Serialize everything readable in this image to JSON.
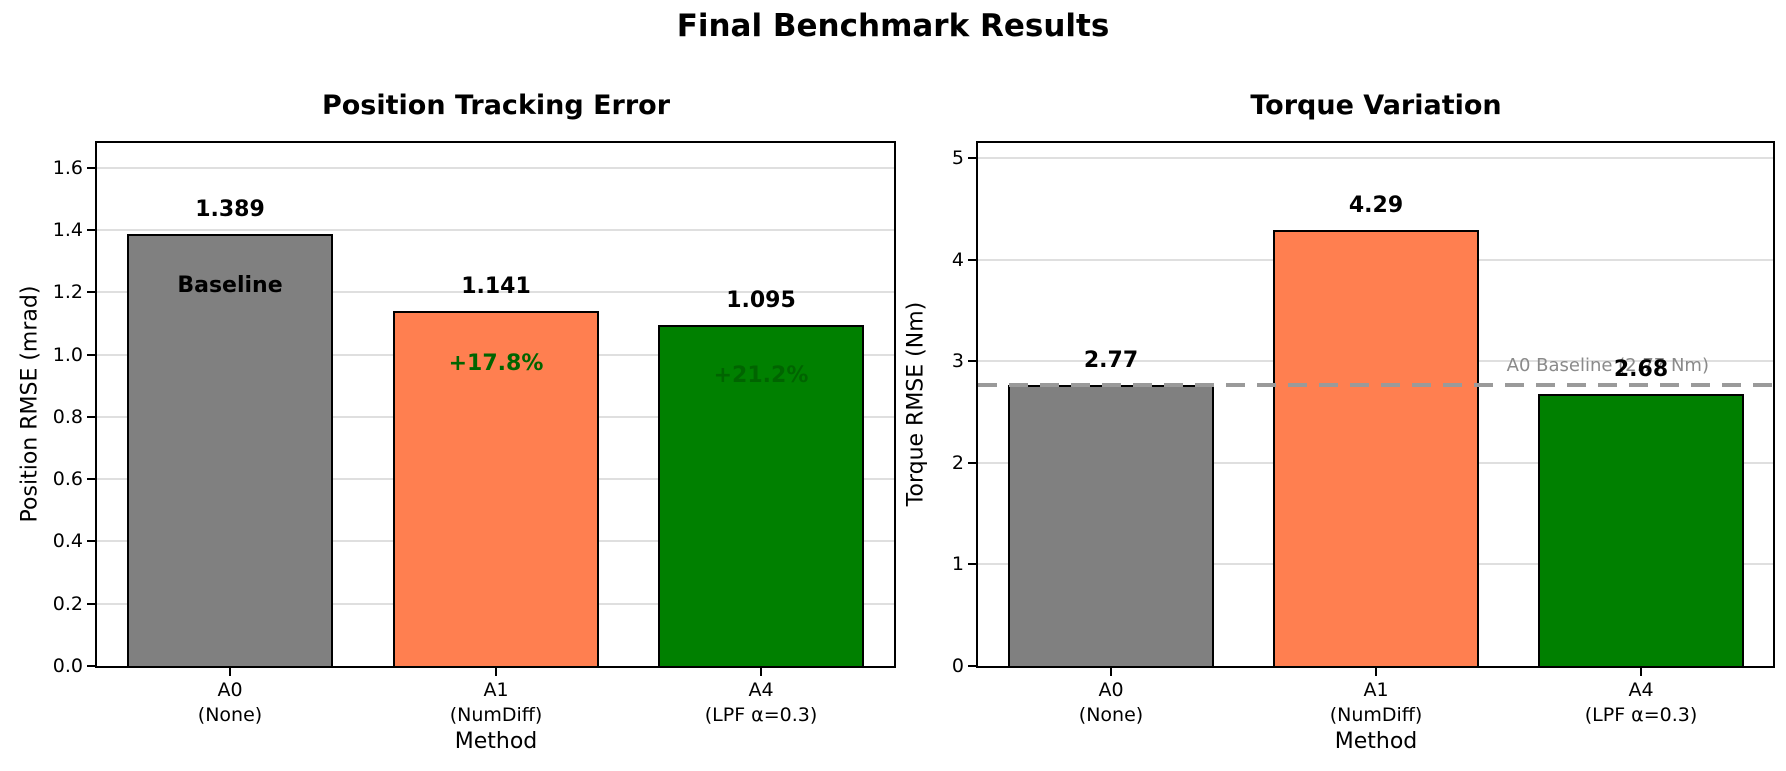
{
  "figure": {
    "title": "Final Benchmark Results",
    "background": "#ffffff"
  },
  "chart_data": [
    {
      "type": "bar",
      "title": "Position Tracking Error",
      "xlabel": "Method",
      "ylabel": "Position RMSE (mrad)",
      "categories": [
        [
          "A0",
          "(None)"
        ],
        [
          "A1",
          "(NumDiff)"
        ],
        [
          "A4",
          "(LPF α=0.3)"
        ]
      ],
      "values": [
        1.389,
        1.141,
        1.095
      ],
      "bar_labels": [
        "1.389",
        "1.141",
        "1.095"
      ],
      "bar_colors": [
        "#808080",
        "#FF7F50",
        "#008000"
      ],
      "bar_edge_color": "#000000",
      "ylim": [
        0,
        1.68
      ],
      "yticks": [
        "0.0",
        "0.2",
        "0.4",
        "0.6",
        "0.8",
        "1.0",
        "1.2",
        "1.4",
        "1.6"
      ],
      "grid": true,
      "grid_color": "rgba(176,176,176,0.4)",
      "legend": "none",
      "annotations": [
        {
          "bar": 0,
          "text": "Baseline",
          "color": "#000000",
          "value": 1.22
        },
        {
          "bar": 1,
          "text": "+17.8%",
          "color": "#006400",
          "value": 0.97
        },
        {
          "bar": 2,
          "text": "+21.2%",
          "color": "#006400",
          "value": 0.93
        }
      ]
    },
    {
      "type": "bar",
      "title": "Torque Variation",
      "xlabel": "Method",
      "ylabel": "Torque RMSE (Nm)",
      "categories": [
        [
          "A0",
          "(None)"
        ],
        [
          "A1",
          "(NumDiff)"
        ],
        [
          "A4",
          "(LPF α=0.3)"
        ]
      ],
      "values": [
        2.77,
        4.29,
        2.68
      ],
      "bar_labels": [
        "2.77",
        "4.29",
        "2.68"
      ],
      "bar_colors": [
        "#808080",
        "#FF7F50",
        "#008000"
      ],
      "bar_edge_color": "#000000",
      "ylim": [
        0,
        5.15
      ],
      "yticks": [
        "0",
        "1",
        "2",
        "3",
        "4",
        "5"
      ],
      "grid": true,
      "grid_color": "rgba(176,176,176,0.4)",
      "legend": "none",
      "annotations": [],
      "ref_line": {
        "value": 2.77,
        "style": "dashed",
        "color": "#9a9a9a",
        "label": "A0 Baseline (2.77 Nm)",
        "label_color": "#8a8a8a"
      }
    }
  ]
}
